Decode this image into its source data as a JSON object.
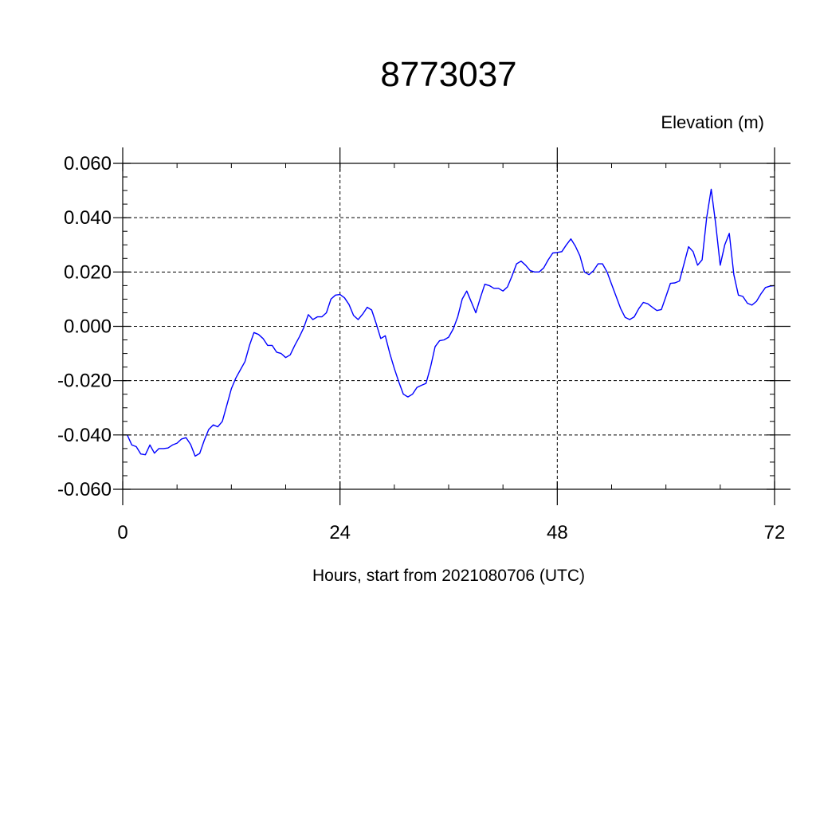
{
  "chart_data": {
    "type": "line",
    "title": "8773037",
    "ylabel": "Elevation (m)",
    "xlabel": "Hours, start from 2021080706 (UTC)",
    "xlim": [
      0,
      72
    ],
    "ylim": [
      -0.06,
      0.06
    ],
    "x_ticks": [
      0,
      24,
      48,
      72
    ],
    "x_tick_labels": [
      "0",
      "24",
      "48",
      "72"
    ],
    "y_ticks": [
      -0.06,
      -0.04,
      -0.02,
      0.0,
      0.02,
      0.04,
      0.06
    ],
    "y_tick_labels": [
      "-0.060",
      "-0.040",
      "-0.020",
      "0.000",
      "0.020",
      "0.040",
      "0.060"
    ],
    "grid": true,
    "series": [
      {
        "color": "#0000ff",
        "x": [
          0.5,
          1.0,
          1.5,
          2.0,
          2.5,
          3.0,
          3.5,
          4.0,
          4.5,
          5.0,
          5.5,
          6.0,
          6.5,
          7.0,
          7.5,
          8.0,
          8.5,
          9.0,
          9.5,
          10.0,
          10.5,
          11.0,
          11.5,
          12.0,
          12.5,
          13.0,
          13.5,
          14.0,
          14.5,
          15.0,
          15.5,
          16.0,
          16.5,
          17.0,
          17.5,
          18.0,
          18.5,
          19.0,
          19.5,
          20.0,
          20.5,
          21.0,
          21.5,
          22.0,
          22.5,
          23.0,
          23.5,
          24.0,
          24.5,
          25.0,
          25.5,
          26.0,
          26.5,
          27.0,
          27.5,
          28.0,
          28.5,
          29.0,
          29.5,
          30.0,
          30.5,
          31.0,
          31.5,
          32.0,
          32.5,
          33.0,
          33.5,
          34.0,
          34.5,
          35.0,
          35.5,
          36.0,
          36.5,
          37.0,
          37.5,
          38.0,
          38.5,
          39.0,
          39.5,
          40.0,
          40.5,
          41.0,
          41.5,
          42.0,
          42.5,
          43.0,
          43.5,
          44.0,
          44.5,
          45.0,
          45.5,
          46.0,
          46.5,
          47.0,
          47.5,
          48.0,
          48.5,
          49.0,
          49.5,
          50.0,
          50.5,
          51.0,
          51.5,
          52.0,
          52.5,
          53.0,
          53.5,
          54.0,
          54.5,
          55.0,
          55.5,
          56.0,
          56.5,
          57.0,
          57.5,
          58.0,
          58.5,
          59.0,
          59.5,
          60.0,
          60.5,
          61.0,
          61.5,
          62.0,
          62.5,
          63.0,
          63.5,
          64.0,
          64.5,
          65.0,
          65.5,
          66.0,
          66.5,
          67.0,
          67.5,
          68.0,
          68.5,
          69.0,
          69.5,
          70.0,
          70.5,
          71.0,
          71.5,
          72.0
        ],
        "values": [
          -0.04,
          -0.0437,
          -0.0443,
          -0.047,
          -0.0473,
          -0.0437,
          -0.0467,
          -0.045,
          -0.045,
          -0.0448,
          -0.0437,
          -0.043,
          -0.0415,
          -0.041,
          -0.0435,
          -0.0478,
          -0.0468,
          -0.042,
          -0.038,
          -0.0363,
          -0.037,
          -0.035,
          -0.029,
          -0.023,
          -0.019,
          -0.016,
          -0.013,
          -0.007,
          -0.0023,
          -0.003,
          -0.0045,
          -0.007,
          -0.007,
          -0.0095,
          -0.01,
          -0.0115,
          -0.0105,
          -0.007,
          -0.004,
          -0.0005,
          0.0043,
          0.0025,
          0.0035,
          0.0035,
          0.005,
          0.01,
          0.0115,
          0.0117,
          0.0105,
          0.008,
          0.004,
          0.0025,
          0.0045,
          0.007,
          0.006,
          0.001,
          -0.0045,
          -0.0035,
          -0.01,
          -0.0155,
          -0.0205,
          -0.025,
          -0.026,
          -0.025,
          -0.0225,
          -0.0217,
          -0.021,
          -0.015,
          -0.0075,
          -0.0053,
          -0.005,
          -0.004,
          -0.001,
          0.0035,
          0.01,
          0.013,
          0.009,
          0.005,
          0.0105,
          0.0155,
          0.015,
          0.014,
          0.014,
          0.013,
          0.0145,
          0.0185,
          0.023,
          0.024,
          0.0225,
          0.0205,
          0.02,
          0.02,
          0.0215,
          0.0245,
          0.027,
          0.0272,
          0.0275,
          0.03,
          0.0322,
          0.0295,
          0.026,
          0.02,
          0.019,
          0.0205,
          0.023,
          0.023,
          0.02,
          0.0155,
          0.011,
          0.0065,
          0.0033,
          0.0025,
          0.0035,
          0.0065,
          0.0088,
          0.0083,
          0.007,
          0.0058,
          0.0062,
          0.011,
          0.0158,
          0.016,
          0.0167,
          0.023,
          0.0293,
          0.0275,
          0.0225,
          0.0245,
          0.04,
          0.0505,
          0.0375,
          0.0225,
          0.03,
          0.0342,
          0.019,
          0.0115,
          0.011,
          0.0085,
          0.0078,
          0.0092,
          0.012,
          0.0143,
          0.0148,
          0.015
        ]
      }
    ]
  }
}
